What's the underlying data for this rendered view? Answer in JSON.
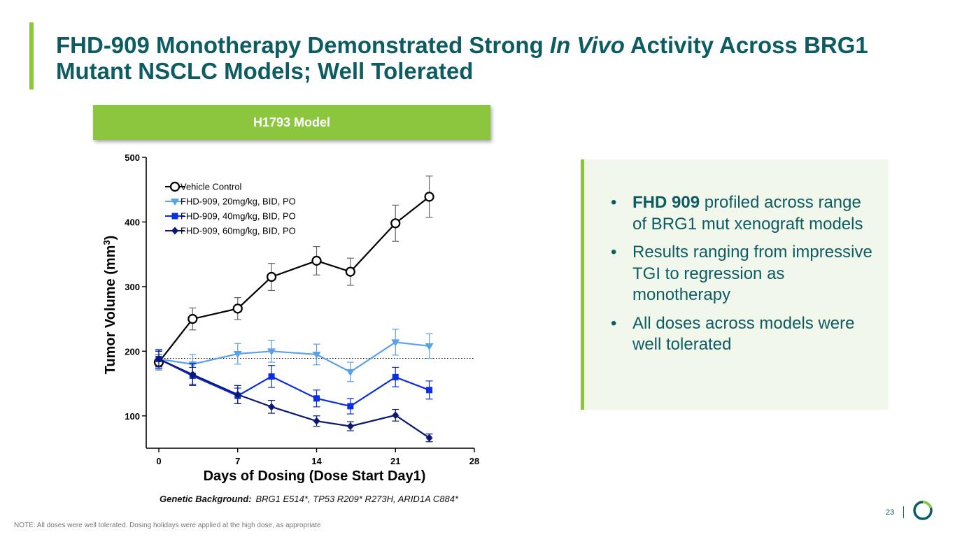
{
  "header": {
    "title_part1": "FHD-909 Monotherapy Demonstrated Strong ",
    "title_italic": "In Vivo",
    "title_part2": " Activity Across BRG1 Mutant NSCLC Models; Well Tolerated"
  },
  "model_banner": "H1793 Model",
  "chart_data": {
    "type": "line",
    "xlabel": "Days of Dosing (Dose Start Day1)",
    "ylabel": "Tumor Volume (mm",
    "ylabel_sup": "3",
    "ylabel_end": ")",
    "xlim": [
      0,
      28
    ],
    "ylim": [
      50,
      500
    ],
    "xticks": [
      0,
      7,
      14,
      21,
      28
    ],
    "yticks": [
      100,
      200,
      300,
      400,
      500
    ],
    "baseline": 189,
    "series": [
      {
        "name": "Vehicle Control",
        "marker": "circle-open",
        "color": "#000000",
        "x": [
          0,
          3,
          7,
          10,
          14,
          17,
          21,
          24
        ],
        "y": [
          183,
          250,
          266,
          315,
          340,
          323,
          398,
          439
        ],
        "err": [
          12,
          17,
          17,
          21,
          22,
          21,
          28,
          32
        ]
      },
      {
        "name": "FHD-909, 20mg/kg, BID, PO",
        "marker": "triangle-down",
        "color": "#5aa0ea",
        "x": [
          0,
          3,
          7,
          10,
          14,
          17,
          21,
          24
        ],
        "y": [
          188,
          180,
          196,
          200,
          195,
          168,
          214,
          208
        ],
        "err": [
          15,
          15,
          16,
          17,
          16,
          15,
          20,
          19
        ]
      },
      {
        "name": "FHD-909, 40mg/kg, BID, PO",
        "marker": "square",
        "color": "#0a2ee0",
        "x": [
          0,
          3,
          7,
          10,
          14,
          17,
          21,
          24
        ],
        "y": [
          188,
          162,
          131,
          161,
          127,
          115,
          160,
          140
        ],
        "err": [
          14,
          13,
          12,
          17,
          13,
          12,
          15,
          14
        ]
      },
      {
        "name": "FHD-909, 60mg/kg, BID, PO",
        "marker": "diamond",
        "color": "#0b1770",
        "x": [
          0,
          3,
          7,
          10,
          14,
          17,
          21,
          24
        ],
        "y": [
          188,
          164,
          133,
          114,
          92,
          84,
          101,
          66
        ],
        "err": [
          12,
          17,
          14,
          10,
          8,
          7,
          9,
          6
        ]
      }
    ]
  },
  "genetic": {
    "label": "Genetic Background:",
    "value": "BRG1 E514*, TP53 R209* R273H, ARID1A C884*"
  },
  "bullets": {
    "b1_bold": "FHD 909",
    "b1_rest": " profiled across range of BRG1 mut xenograft models",
    "b2": "Results ranging from impressive TGI to regression as monotherapy",
    "b3": "All doses across models were well tolerated"
  },
  "footer": {
    "note": "NOTE: All doses were well tolerated. Dosing holidays were applied at the high dose, as appropriate",
    "page_number": "23"
  },
  "colors": {
    "brand_teal": "#0d5c63",
    "brand_green": "#8cc63f"
  }
}
